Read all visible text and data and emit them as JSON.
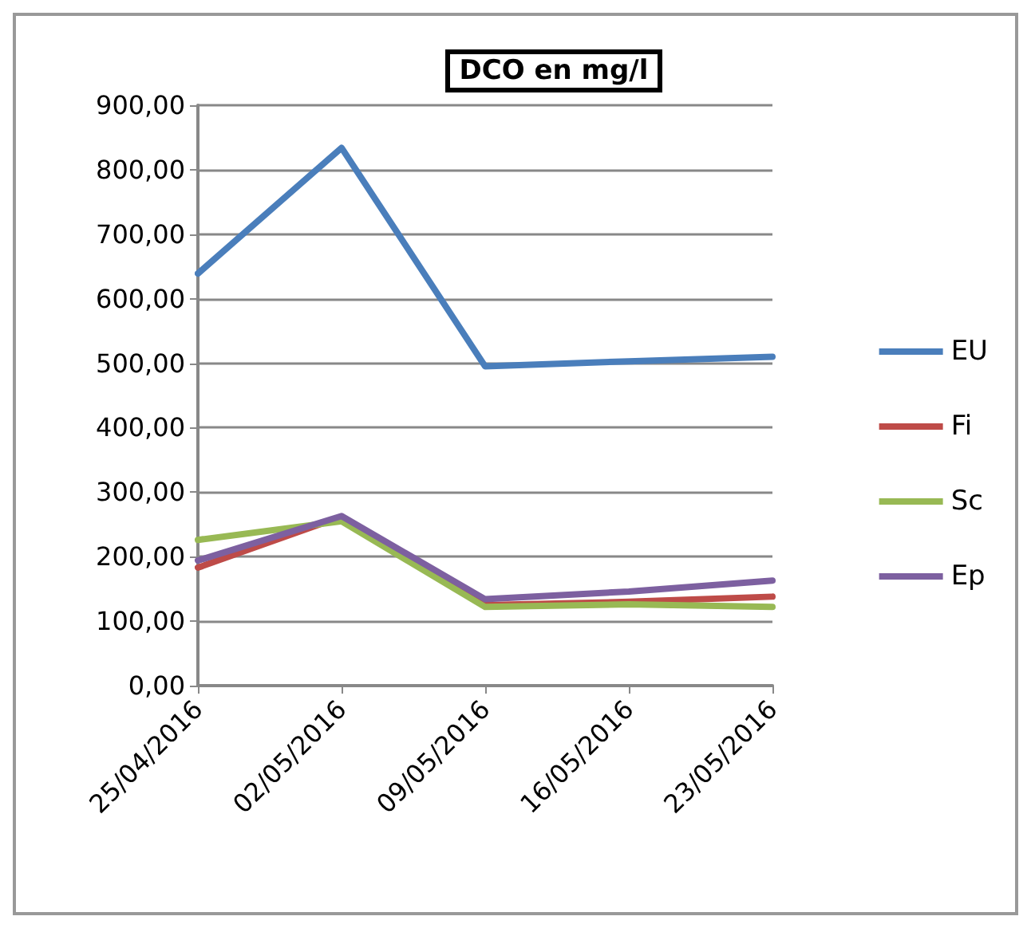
{
  "chart_data": {
    "type": "line",
    "title": "DCO en mg/l",
    "categories": [
      "25/04/2016",
      "02/05/2016",
      "09/05/2016",
      "16/05/2016",
      "23/05/2016"
    ],
    "series": [
      {
        "name": "EU",
        "color": "#4a7ebb",
        "values": [
          639,
          834,
          495,
          503,
          510
        ]
      },
      {
        "name": "Fi",
        "color": "#be4b48",
        "values": [
          183,
          262,
          125,
          130,
          138
        ]
      },
      {
        "name": "Sc",
        "color": "#98b954",
        "values": [
          226,
          255,
          122,
          126,
          122
        ]
      },
      {
        "name": "Ep",
        "color": "#7d60a0",
        "values": [
          194,
          263,
          134,
          146,
          163
        ]
      }
    ],
    "ylim": [
      0,
      900
    ],
    "yticks": [
      {
        "value": 0,
        "label": "0,00"
      },
      {
        "value": 100,
        "label": "100,00"
      },
      {
        "value": 200,
        "label": "200,00"
      },
      {
        "value": 300,
        "label": "300,00"
      },
      {
        "value": 400,
        "label": "400,00"
      },
      {
        "value": 500,
        "label": "500,00"
      },
      {
        "value": 600,
        "label": "600,00"
      },
      {
        "value": 700,
        "label": "700,00"
      },
      {
        "value": 800,
        "label": "800,00"
      },
      {
        "value": 900,
        "label": "900,00"
      }
    ],
    "grid": "y",
    "legend": "right",
    "marker": "none",
    "line_style": "solid"
  }
}
